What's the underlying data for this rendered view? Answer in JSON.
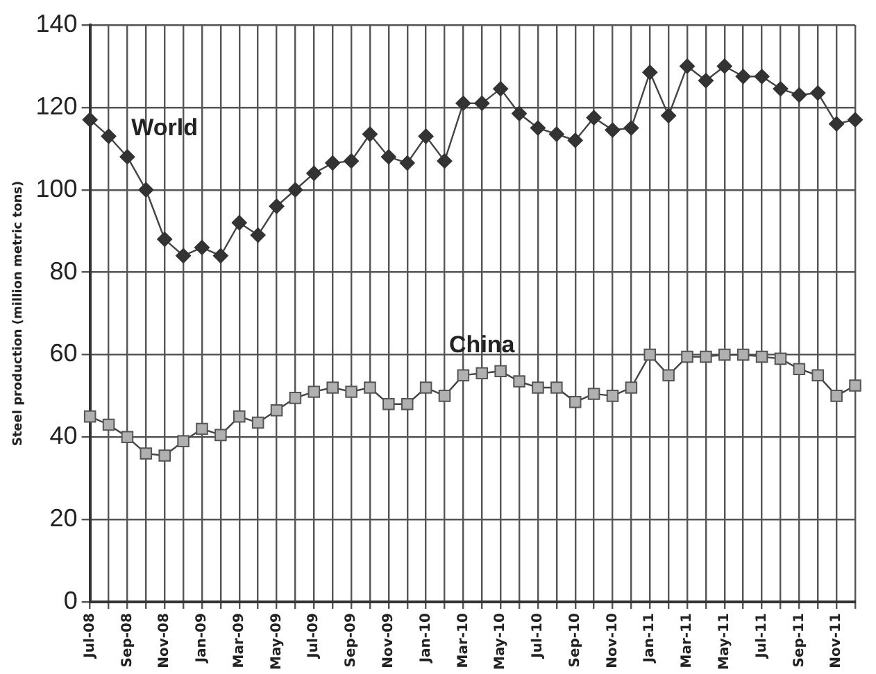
{
  "chart_data": {
    "type": "line",
    "ylabel": "Steel production (million metric tons)",
    "categories": [
      "Jul-08",
      null,
      "Sep-08",
      null,
      "Nov-08",
      null,
      "Jan-09",
      null,
      "Mar-09",
      null,
      "May-09",
      null,
      "Jul-09",
      null,
      "Sep-09",
      null,
      "Nov-09",
      null,
      "Jan-10",
      null,
      "Mar-10",
      null,
      "May-10",
      null,
      "Jul-10",
      null,
      "Sep-10",
      null,
      "Nov-10",
      null,
      "Jan-11",
      null,
      "Mar-11",
      null,
      "May-11",
      null,
      "Jul-11",
      null,
      "Sep-11",
      null,
      "Nov-11",
      null
    ],
    "series": [
      {
        "name": "World",
        "color": "#333333",
        "marker": "diamond",
        "values": [
          117,
          113,
          108,
          100,
          88,
          84,
          86,
          84,
          92,
          89,
          96,
          100,
          104,
          106.5,
          107,
          113.5,
          108,
          106.5,
          113,
          107,
          121,
          121,
          124.5,
          118.5,
          115,
          113.5,
          112,
          117.5,
          114.5,
          115,
          128.5,
          118,
          130,
          126.5,
          130,
          127.5,
          127.5,
          124.5,
          123,
          123.5,
          116,
          117
        ]
      },
      {
        "name": "China",
        "color": "#b0b0b0",
        "marker": "square",
        "values": [
          45,
          43,
          40,
          36,
          35.5,
          39,
          42,
          40.5,
          45,
          43.5,
          46.5,
          49.5,
          51,
          52,
          51,
          52,
          48,
          48,
          52,
          50,
          55,
          55.5,
          56,
          53.5,
          52,
          52,
          48.5,
          50.5,
          50,
          52,
          60,
          55,
          59.5,
          59.5,
          60,
          60,
          59.5,
          59,
          56.5,
          55,
          50,
          52.5
        ]
      }
    ],
    "ylim": [
      0,
      140
    ],
    "yticks": [
      0,
      20,
      40,
      60,
      80,
      100,
      120,
      140
    ],
    "grid": true,
    "legend": false,
    "line_style": "solid"
  }
}
